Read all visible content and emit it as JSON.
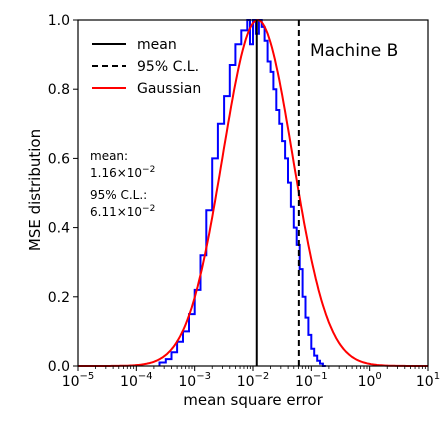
{
  "chart_data": {
    "type": "line",
    "title": "",
    "xlabel": "mean square error",
    "ylabel": "MSE distribution",
    "xscale": "log",
    "xlim": [
      1e-05,
      10
    ],
    "ylim": [
      0,
      1.0
    ],
    "x_ticks": [
      {
        "value": 1e-05,
        "base": "10",
        "exp": "−5"
      },
      {
        "value": 0.0001,
        "base": "10",
        "exp": "−4"
      },
      {
        "value": 0.001,
        "base": "10",
        "exp": "−3"
      },
      {
        "value": 0.01,
        "base": "10",
        "exp": "−2"
      },
      {
        "value": 0.1,
        "base": "10",
        "exp": "−1"
      },
      {
        "value": 1,
        "base": "10",
        "exp": "0"
      },
      {
        "value": 10,
        "base": "10",
        "exp": "1"
      }
    ],
    "y_ticks": [
      {
        "value": 0.0,
        "label": "0.0"
      },
      {
        "value": 0.2,
        "label": "0.2"
      },
      {
        "value": 0.4,
        "label": "0.4"
      },
      {
        "value": 0.6,
        "label": "0.6"
      },
      {
        "value": 0.8,
        "label": "0.8"
      },
      {
        "value": 1.0,
        "label": "1.0"
      }
    ],
    "grid": false,
    "legend": {
      "placement": "top-left",
      "entries": [
        {
          "label": "mean",
          "color": "#000000",
          "style": "solid"
        },
        {
          "label": "95% C.L.",
          "color": "#000000",
          "style": "dashed"
        },
        {
          "label": "Gaussian",
          "color": "#ff0000",
          "style": "solid"
        }
      ]
    },
    "annotations": {
      "machine": "Machine B",
      "mean_title": "mean:",
      "mean_mantissa": "1.16×10",
      "mean_exp": "−2",
      "cl_title": "95% C.L.:",
      "cl_mantissa": "6.11×10",
      "cl_exp": "−2"
    },
    "mean_value": 0.0116,
    "cl95_value": 0.0611,
    "gaussian": {
      "color": "#ff0000",
      "center_log10": -1.92,
      "sigma_log10": 0.6
    },
    "histogram": {
      "color": "#0000ff",
      "x": [
        0.00025,
        0.00032,
        0.0004,
        0.0005,
        0.00063,
        0.0008,
        0.001,
        0.00126,
        0.00158,
        0.002,
        0.0025,
        0.0032,
        0.004,
        0.005,
        0.0063,
        0.008,
        0.0089,
        0.01,
        0.0112,
        0.0126,
        0.0141,
        0.0158,
        0.0178,
        0.02,
        0.0224,
        0.0251,
        0.0282,
        0.0316,
        0.0355,
        0.0398,
        0.0447,
        0.0501,
        0.0562,
        0.0631,
        0.0708,
        0.0794,
        0.0891,
        0.1,
        0.112,
        0.126,
        0.141,
        0.158
      ],
      "y": [
        0.01,
        0.02,
        0.04,
        0.07,
        0.1,
        0.15,
        0.22,
        0.32,
        0.45,
        0.6,
        0.7,
        0.78,
        0.87,
        0.93,
        0.97,
        1.0,
        0.93,
        1.0,
        0.96,
        1.0,
        0.98,
        0.94,
        0.88,
        0.85,
        0.8,
        0.74,
        0.7,
        0.65,
        0.6,
        0.53,
        0.46,
        0.4,
        0.35,
        0.28,
        0.2,
        0.14,
        0.09,
        0.05,
        0.03,
        0.015,
        0.007,
        0.0
      ]
    }
  }
}
